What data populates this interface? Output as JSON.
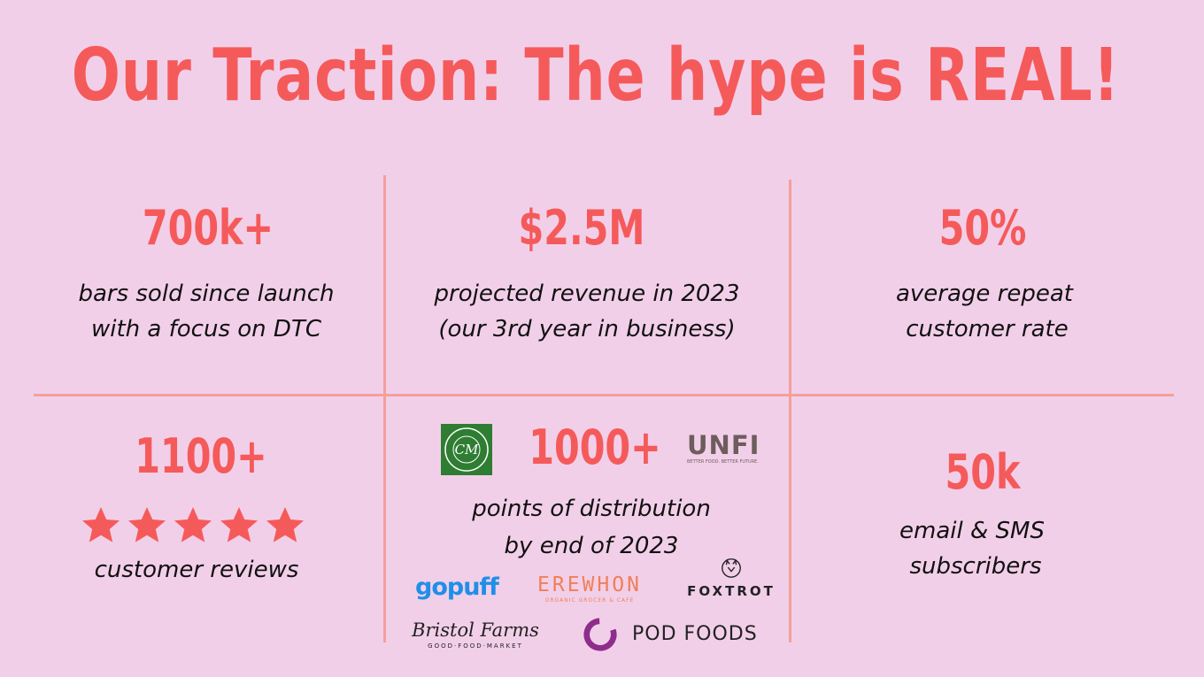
{
  "title": "Our Traction: The hype is REAL!",
  "cells": {
    "bars": {
      "stat": "700k+",
      "line1": "bars sold since launch",
      "line2": "with a focus on DTC"
    },
    "revenue": {
      "stat": "$2.5M",
      "line1": "projected revenue in 2023",
      "line2": "(our 3rd year in business)"
    },
    "repeat": {
      "stat": "50%",
      "line1": "average repeat",
      "line2": "customer rate"
    },
    "reviews": {
      "stat": "1100+",
      "rating": 5,
      "line1": "customer reviews"
    },
    "distribution": {
      "stat": "1000+",
      "line1": "points of distribution",
      "line2": "by end of 2023"
    },
    "subscribers": {
      "stat": "50k",
      "line1": "email & SMS",
      "line2": "subscribers"
    }
  },
  "logos": {
    "central_market": "CENTRAL MARKET",
    "unfi": "UNFI",
    "unfi_tagline": "BETTER FOOD. BETTER FUTURE.",
    "gopuff": "gopuff",
    "erewhon": "EREWHON",
    "erewhon_tagline": "ORGANIC GROCER & CAFE",
    "foxtrot": "FOXTROT",
    "bristol_farms": "Bristol Farms",
    "bristol_tagline": "GOOD·FOOD·MARKET",
    "pod_foods": "POD FOODS"
  },
  "colors": {
    "background": "#f2cfe9",
    "accent": "#f55a5a",
    "divider": "#f4a09a"
  }
}
